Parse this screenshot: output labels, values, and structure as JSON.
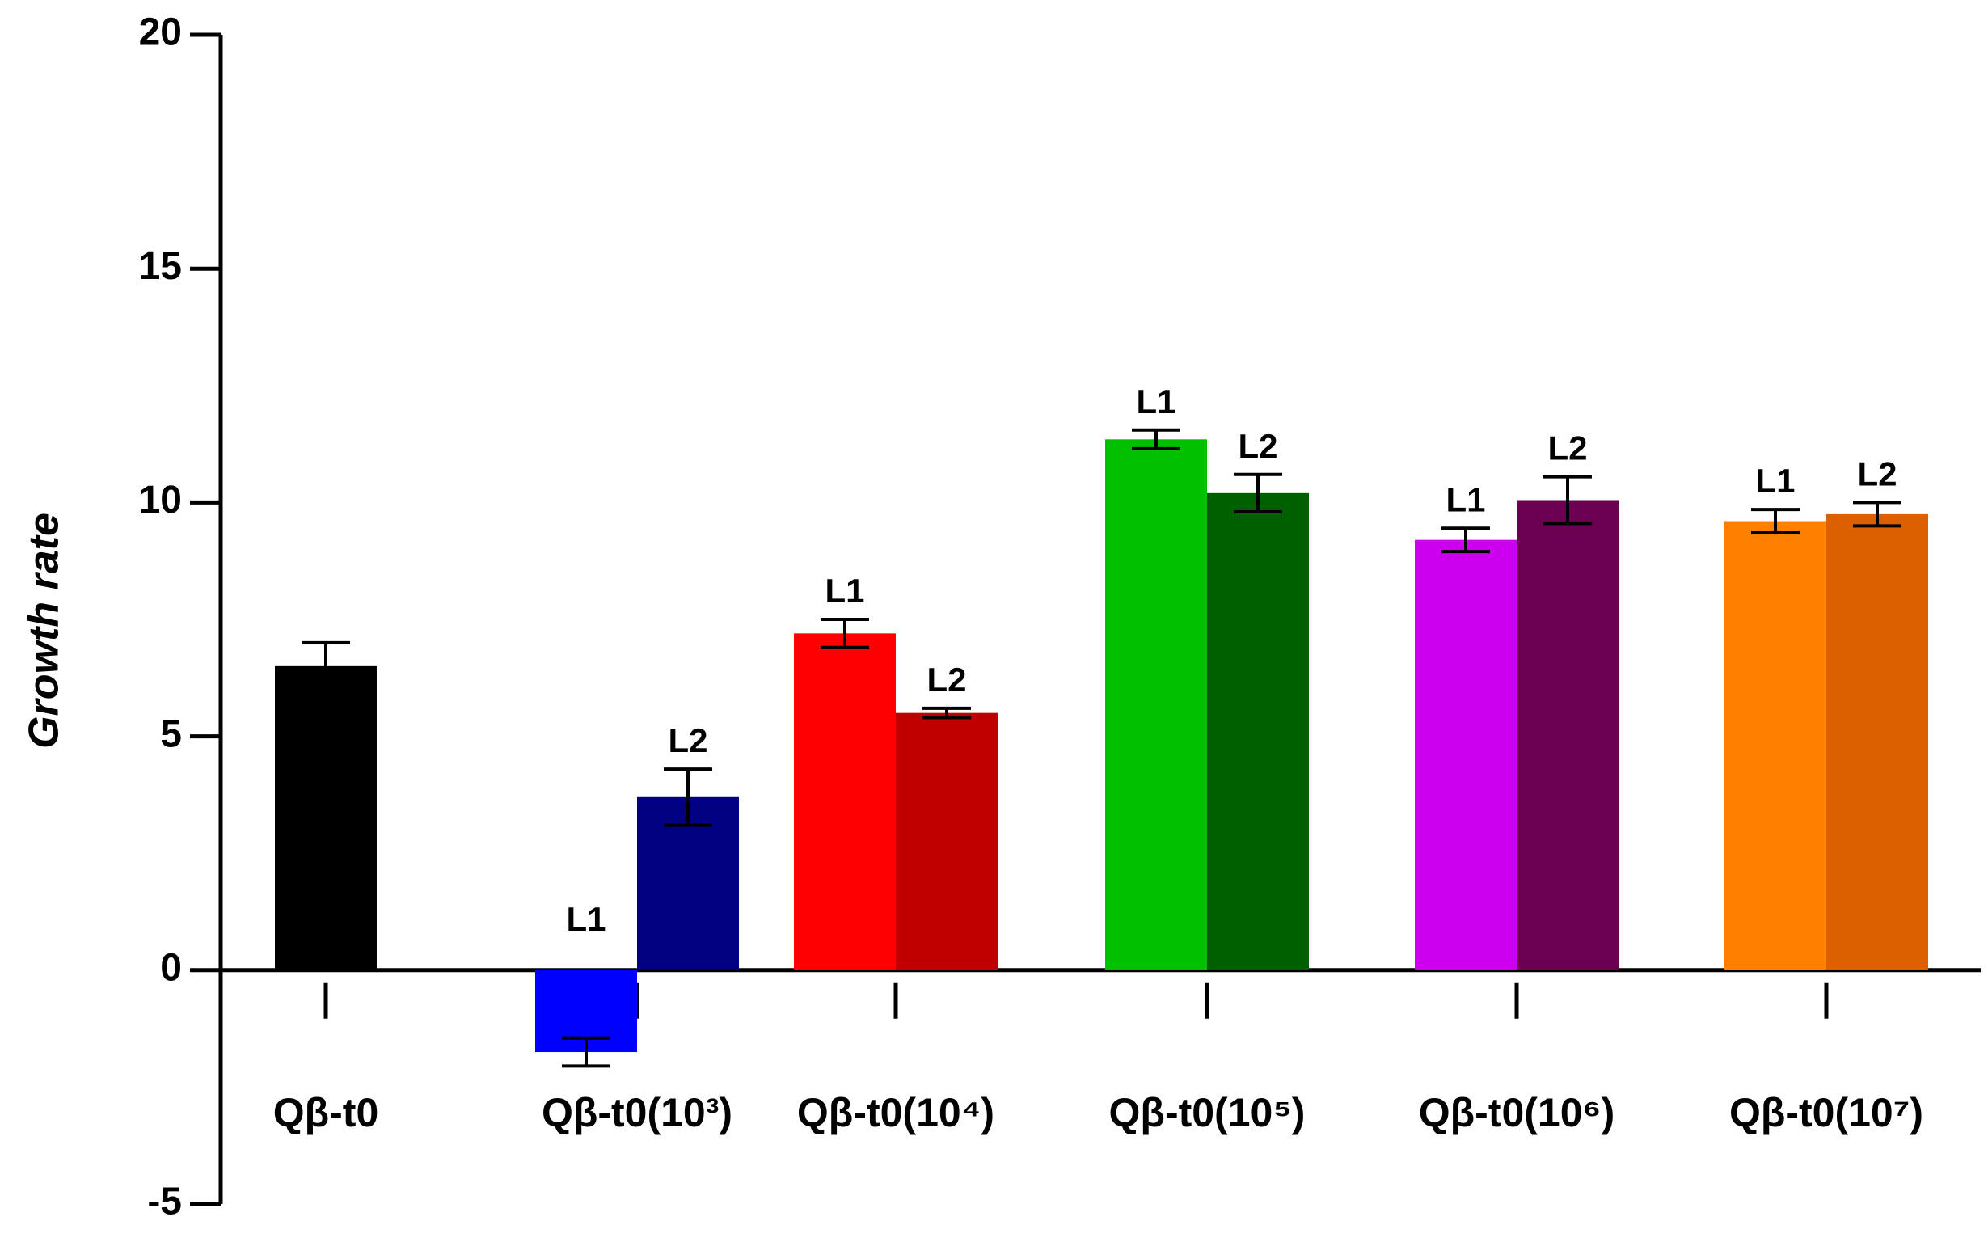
{
  "chart_data": {
    "type": "bar",
    "ylabel": "Growth rate",
    "ylim": [
      -5,
      20
    ],
    "yticks": [
      -5,
      0,
      5,
      10,
      15,
      20
    ],
    "categories": [
      "Qβ-t0",
      "Qβ-t0(10³)",
      "Qβ-t0(10⁴)",
      "Qβ-t0(10⁵)",
      "Qβ-t0(10⁶)",
      "Qβ-t0(10⁷)"
    ],
    "groups": [
      [
        {
          "value": 6.5,
          "error": 0.5,
          "color": "#000000"
        }
      ],
      [
        {
          "label": "L1",
          "value": -1.75,
          "error": 0.3,
          "color": "#0000ff"
        },
        {
          "label": "L2",
          "value": 3.7,
          "error": 0.6,
          "color": "#000080"
        }
      ],
      [
        {
          "label": "L1",
          "value": 7.2,
          "error": 0.3,
          "color": "#ff0000"
        },
        {
          "label": "L2",
          "value": 5.5,
          "error": 0.1,
          "color": "#c00000"
        }
      ],
      [
        {
          "label": "L1",
          "value": 11.35,
          "error": 0.2,
          "color": "#00c000"
        },
        {
          "label": "L2",
          "value": 10.2,
          "error": 0.4,
          "color": "#006000"
        }
      ],
      [
        {
          "label": "L1",
          "value": 9.2,
          "error": 0.25,
          "color": "#cc00ee"
        },
        {
          "label": "L2",
          "value": 10.05,
          "error": 0.5,
          "color": "#6c0050"
        }
      ],
      [
        {
          "label": "L1",
          "value": 9.6,
          "error": 0.25,
          "color": "#ff8000"
        },
        {
          "label": "L2",
          "value": 9.75,
          "error": 0.25,
          "color": "#dd6000"
        }
      ]
    ]
  }
}
